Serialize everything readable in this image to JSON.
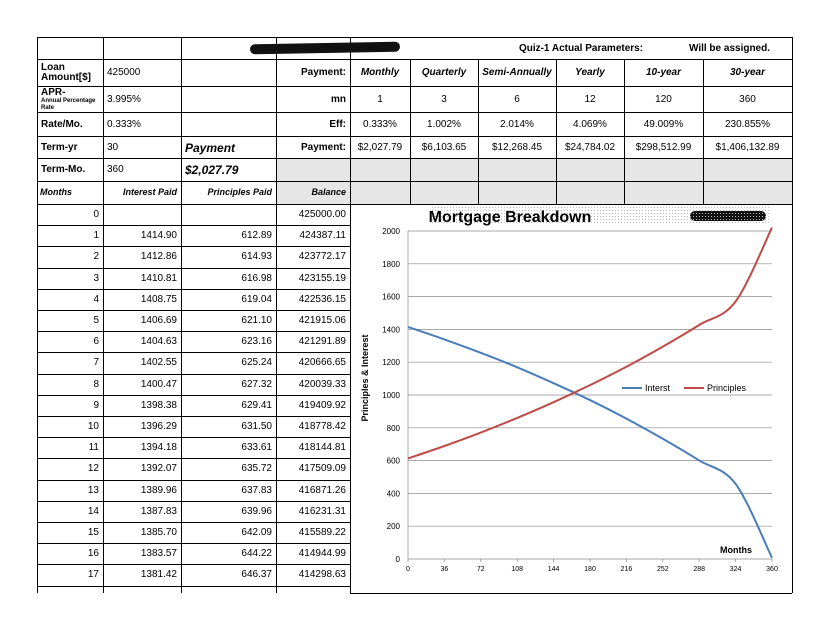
{
  "header": {
    "quiz_title": "Quiz-1 Actual Parameters:",
    "assigned_note": "Will be assigned."
  },
  "params": {
    "loan_label": "Loan Amount[$]",
    "loan_value": "425000",
    "apr_label_bold": "APR-",
    "apr_label_small": "Annual Percentage Rate",
    "apr_value": "3.995%",
    "rate_label": "Rate/Mo.",
    "rate_value": "0.333%",
    "termyr_label": "Term-yr",
    "termyr_value": "30",
    "termmo_label": "Term-Mo.",
    "termmo_value": "360",
    "payment_label": "Payment",
    "payment_value": "$2,027.79"
  },
  "compare": {
    "row_labels": [
      "Payment:",
      "mn",
      "Eff:",
      "Payment:"
    ],
    "headers": [
      "Monthly",
      "Quarterly",
      "Semi-Annually",
      "Yearly",
      "10-year",
      "30-year"
    ],
    "mn": [
      "1",
      "3",
      "6",
      "12",
      "120",
      "360"
    ],
    "eff": [
      "0.333%",
      "1.002%",
      "2.014%",
      "4.069%",
      "49.009%",
      "230.855%"
    ],
    "payment": [
      "$2,027.79",
      "$6,103.65",
      "$12,268.45",
      "$24,784.02",
      "$298,512.99",
      "$1,406,132.89"
    ]
  },
  "schedule": {
    "headers": [
      "Months",
      "Interest Paid",
      "Principles Paid",
      "Balance"
    ],
    "rows": [
      [
        "0",
        "",
        "",
        "425000.00"
      ],
      [
        "1",
        "1414.90",
        "612.89",
        "424387.11"
      ],
      [
        "2",
        "1412.86",
        "614.93",
        "423772.17"
      ],
      [
        "3",
        "1410.81",
        "616.98",
        "423155.19"
      ],
      [
        "4",
        "1408.75",
        "619.04",
        "422536.15"
      ],
      [
        "5",
        "1406.69",
        "621.10",
        "421915.06"
      ],
      [
        "6",
        "1404.63",
        "623.16",
        "421291.89"
      ],
      [
        "7",
        "1402.55",
        "625.24",
        "420666.65"
      ],
      [
        "8",
        "1400.47",
        "627.32",
        "420039.33"
      ],
      [
        "9",
        "1398.38",
        "629.41",
        "419409.92"
      ],
      [
        "10",
        "1396.29",
        "631.50",
        "418778.42"
      ],
      [
        "11",
        "1394.18",
        "633.61",
        "418144.81"
      ],
      [
        "12",
        "1392.07",
        "635.72",
        "417509.09"
      ],
      [
        "13",
        "1389.96",
        "637.83",
        "416871.26"
      ],
      [
        "14",
        "1387.83",
        "639.96",
        "416231.31"
      ],
      [
        "15",
        "1385.70",
        "642.09",
        "415589.22"
      ],
      [
        "16",
        "1383.57",
        "644.22",
        "414944.99"
      ],
      [
        "17",
        "1381.42",
        "646.37",
        "414298.63"
      ]
    ]
  },
  "chart_data": {
    "type": "line",
    "title": "Mortgage Breakdown",
    "xlabel": "Months",
    "ylabel": "Principles & Interest",
    "xlim": [
      0,
      360
    ],
    "ylim": [
      0,
      2000
    ],
    "x_ticks": [
      "0",
      "36",
      "72",
      "108",
      "144",
      "180",
      "216",
      "252",
      "288",
      "324",
      "360"
    ],
    "y_ticks": [
      "0",
      "200",
      "400",
      "600",
      "800",
      "1000",
      "1200",
      "1400",
      "1600",
      "1800",
      "2000"
    ],
    "grid": true,
    "legend_position": "right",
    "x": [
      0,
      36,
      72,
      108,
      144,
      180,
      216,
      252,
      288,
      324,
      360
    ],
    "series": [
      {
        "name": "Interst",
        "color": "#4a7ebb",
        "values": [
          1415,
          1339,
          1257,
          1169,
          1072,
          969,
          856,
          733,
          601,
          458,
          7
        ]
      },
      {
        "name": "Principles",
        "color": "#be4b48",
        "values": [
          613,
          689,
          771,
          860,
          956,
          1060,
          1172,
          1295,
          1427,
          1570,
          2021
        ]
      }
    ]
  }
}
